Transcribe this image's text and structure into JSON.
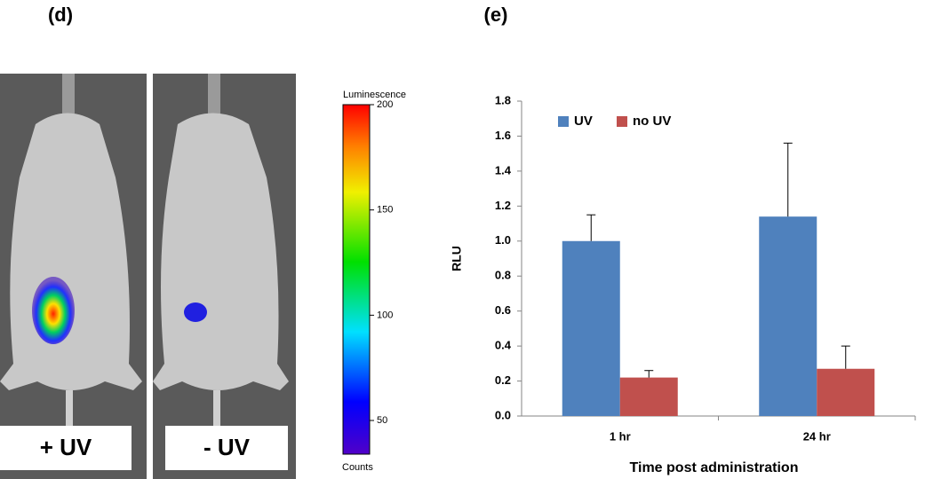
{
  "panel_labels": [
    "(d)",
    "(e)"
  ],
  "image": {
    "labels": [
      "+ UV",
      "- UV"
    ],
    "colorbar": {
      "title": "Luminescence",
      "unit": "Counts",
      "lim": [
        34,
        200
      ],
      "ticks": [
        50,
        100,
        150,
        200
      ]
    }
  },
  "chart_data": {
    "type": "bar",
    "x_label": "Time post administration",
    "y_label": "RLU",
    "categories": [
      "1 hr",
      "24 hr"
    ],
    "series": [
      {
        "name": "UV",
        "color": "#4f81bd",
        "values": [
          1.0,
          1.14
        ],
        "errors": [
          0.15,
          0.42
        ]
      },
      {
        "name": "no UV",
        "color": "#c0504d",
        "values": [
          0.22,
          0.27
        ],
        "errors": [
          0.04,
          0.13
        ]
      }
    ],
    "ylim": [
      0,
      1.8
    ],
    "yticks": [
      {
        "value": 0,
        "label": "0.0"
      },
      0.2,
      0.4,
      0.6,
      0.8,
      {
        "value": 1,
        "label": "1.0"
      },
      1.2,
      1.4,
      1.6,
      1.8
    ],
    "legend": "upper left",
    "grid": false
  }
}
